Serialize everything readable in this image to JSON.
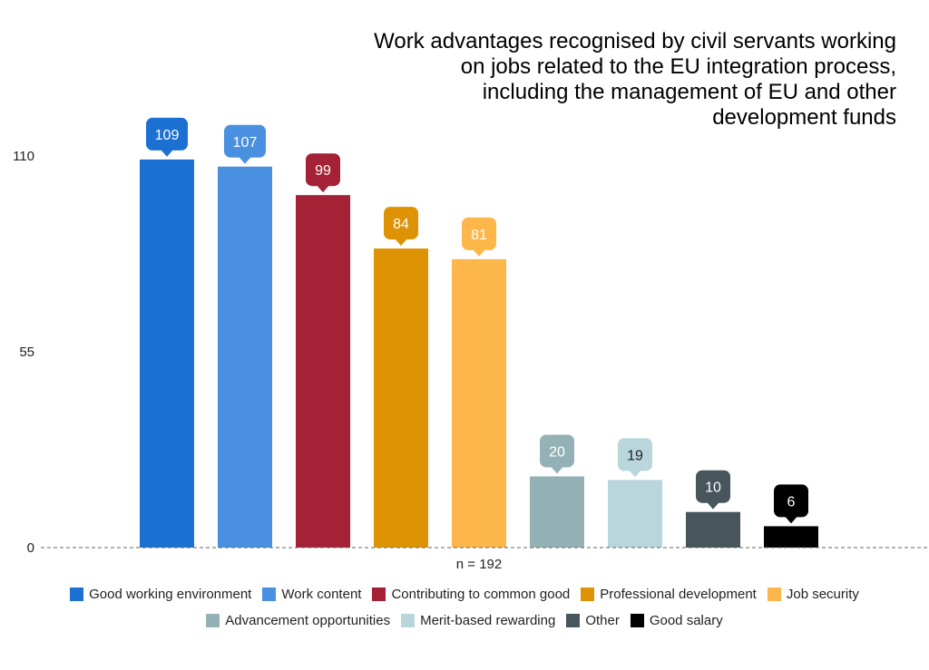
{
  "chart_data": {
    "type": "bar",
    "title": "Work advantages recognised by civil servants working on jobs related to the EU integration process, including the management of EU and other development funds",
    "title_lines": [
      "Work advantages recognised by civil servants working",
      "on jobs related to the EU integration process,",
      "including the management of EU and other",
      "development funds"
    ],
    "xlabel": "n = 192",
    "ylabel": "",
    "ylim": [
      0,
      110
    ],
    "yticks": [
      "0",
      "55",
      "110"
    ],
    "grid": false,
    "legend_position": "bottom",
    "categories": [
      "Good working environment",
      "Work content",
      "Contributing to common good",
      "Professional development",
      "Job security",
      "Advancement opportunities",
      "Merit-based rewarding",
      "Other",
      "Good salary"
    ],
    "values": [
      109,
      107,
      99,
      84,
      81,
      20,
      19,
      10,
      6
    ],
    "colors": [
      "#1c70d1",
      "#4a90e0",
      "#a52135",
      "#dd9303",
      "#fcb649",
      "#94b2b6",
      "#b8d6dc",
      "#47565c",
      "#000000"
    ],
    "label_text_colors": [
      "#ffffff",
      "#ffffff",
      "#ffffff",
      "#ffffff",
      "#ffffff",
      "#ffffff",
      "#222222",
      "#ffffff",
      "#ffffff"
    ]
  }
}
